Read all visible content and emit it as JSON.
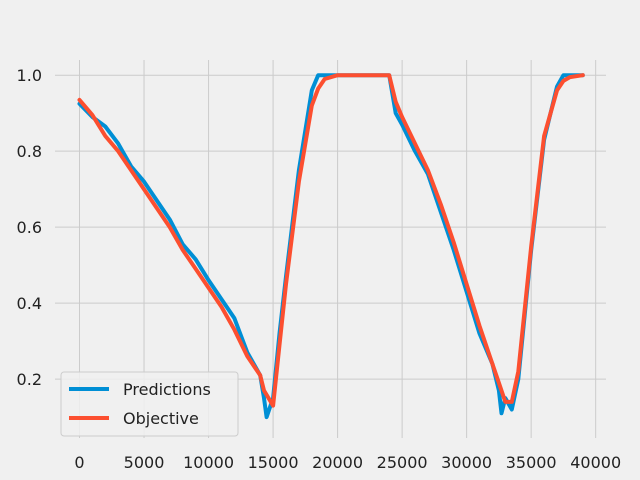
{
  "chart_data": {
    "type": "line",
    "title": "",
    "xlabel": "",
    "ylabel": "",
    "xlim": [
      -1900,
      40800
    ],
    "ylim": [
      0.045,
      1.04
    ],
    "xticks": [
      0,
      5000,
      10000,
      15000,
      20000,
      25000,
      30000,
      35000,
      40000
    ],
    "xtick_labels": [
      "0",
      "5000",
      "10000",
      "15000",
      "20000",
      "25000",
      "30000",
      "35000",
      "40000"
    ],
    "yticks": [
      0.2,
      0.4,
      0.6,
      0.8,
      1.0
    ],
    "ytick_labels": [
      "0.2",
      "0.4",
      "0.6",
      "0.8",
      "1.0"
    ],
    "grid": true,
    "legend_position": "lower-left",
    "series": [
      {
        "name": "Predictions",
        "color": "#008fd5",
        "x": [
          0,
          1000,
          2000,
          3000,
          4000,
          5000,
          6000,
          7000,
          8000,
          9000,
          10000,
          11000,
          12000,
          13000,
          14000,
          14300,
          14500,
          14700,
          15000,
          15500,
          16000,
          17000,
          18000,
          18500,
          19000,
          20000,
          21000,
          22000,
          23000,
          24000,
          24500,
          25000,
          26000,
          27000,
          28000,
          29000,
          30000,
          31000,
          32000,
          32500,
          32700,
          33000,
          33500,
          34000,
          35000,
          36000,
          37000,
          37500,
          38000,
          39000
        ],
        "y": [
          0.925,
          0.89,
          0.865,
          0.82,
          0.76,
          0.72,
          0.67,
          0.62,
          0.555,
          0.515,
          0.46,
          0.41,
          0.36,
          0.27,
          0.21,
          0.15,
          0.1,
          0.12,
          0.15,
          0.32,
          0.47,
          0.75,
          0.96,
          1.0,
          1.0,
          1.0,
          1.0,
          1.0,
          1.0,
          1.0,
          0.9,
          0.87,
          0.8,
          0.74,
          0.64,
          0.54,
          0.43,
          0.32,
          0.24,
          0.17,
          0.11,
          0.15,
          0.12,
          0.2,
          0.54,
          0.83,
          0.97,
          1.0,
          1.0,
          1.0
        ]
      },
      {
        "name": "Objective",
        "color": "#fc4f30",
        "x": [
          0,
          1000,
          2000,
          3000,
          4000,
          5000,
          6000,
          7000,
          8000,
          9000,
          10000,
          11000,
          12000,
          13000,
          14000,
          14300,
          15000,
          15500,
          16000,
          17000,
          18000,
          18500,
          19000,
          20000,
          21000,
          22000,
          23000,
          24000,
          24500,
          25000,
          26000,
          27000,
          28000,
          29000,
          30000,
          31000,
          32000,
          32500,
          33000,
          33500,
          34000,
          35000,
          36000,
          37000,
          37500,
          38000,
          39000
        ],
        "y": [
          0.935,
          0.895,
          0.84,
          0.8,
          0.75,
          0.7,
          0.65,
          0.6,
          0.54,
          0.49,
          0.44,
          0.39,
          0.33,
          0.26,
          0.21,
          0.17,
          0.13,
          0.29,
          0.45,
          0.72,
          0.92,
          0.965,
          0.99,
          1.0,
          1.0,
          1.0,
          1.0,
          1.0,
          0.93,
          0.89,
          0.82,
          0.75,
          0.66,
          0.56,
          0.45,
          0.34,
          0.24,
          0.19,
          0.14,
          0.14,
          0.22,
          0.55,
          0.84,
          0.96,
          0.985,
          0.995,
          1.0
        ]
      }
    ]
  }
}
